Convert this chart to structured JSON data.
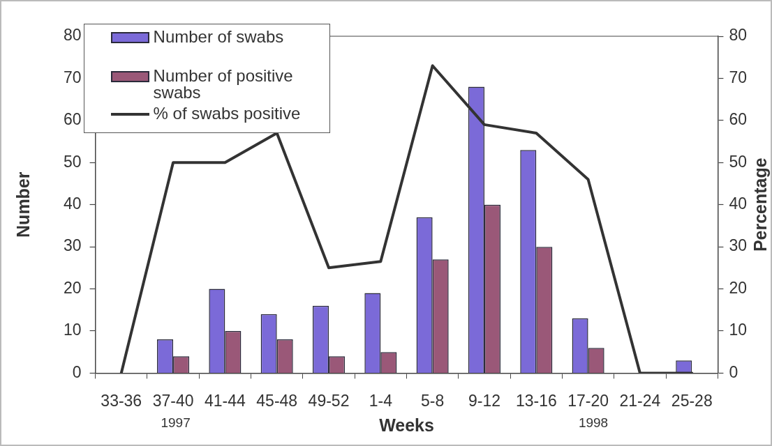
{
  "chart_data": {
    "type": "bar",
    "xlabel": "Weeks",
    "ylabel": "Number",
    "y2label": "Percentage",
    "categories": [
      "33-36",
      "37-40",
      "41-44",
      "45-48",
      "49-52",
      "1-4",
      "5-8",
      "9-12",
      "13-16",
      "17-20",
      "21-24",
      "25-28"
    ],
    "series": [
      {
        "name": "Number of swabs",
        "color": "#7b6ad8",
        "values": [
          0,
          8,
          20,
          14,
          16,
          19,
          37,
          68,
          53,
          13,
          0,
          3
        ]
      },
      {
        "name": "Number of positive swabs",
        "color": "#9a5878",
        "values": [
          0,
          4,
          10,
          8,
          4,
          5,
          27,
          40,
          30,
          6,
          0,
          0
        ]
      },
      {
        "name": "% of swabs positive",
        "type": "line",
        "axis": "y2",
        "color": "#333333",
        "values": [
          0,
          50,
          50,
          57,
          25,
          26.5,
          73,
          59,
          57,
          46,
          0,
          0
        ]
      }
    ],
    "ylim": [
      0,
      80
    ],
    "yticks": [
      0,
      10,
      20,
      30,
      40,
      50,
      60,
      70,
      80
    ],
    "y2lim": [
      0,
      80
    ],
    "y2ticks": [
      0,
      10,
      20,
      30,
      40,
      50,
      60,
      70,
      80
    ],
    "grid": false,
    "legend": "top left",
    "marker": "none",
    "line_style": "solid",
    "annotations": [
      "1997",
      "1998"
    ]
  }
}
